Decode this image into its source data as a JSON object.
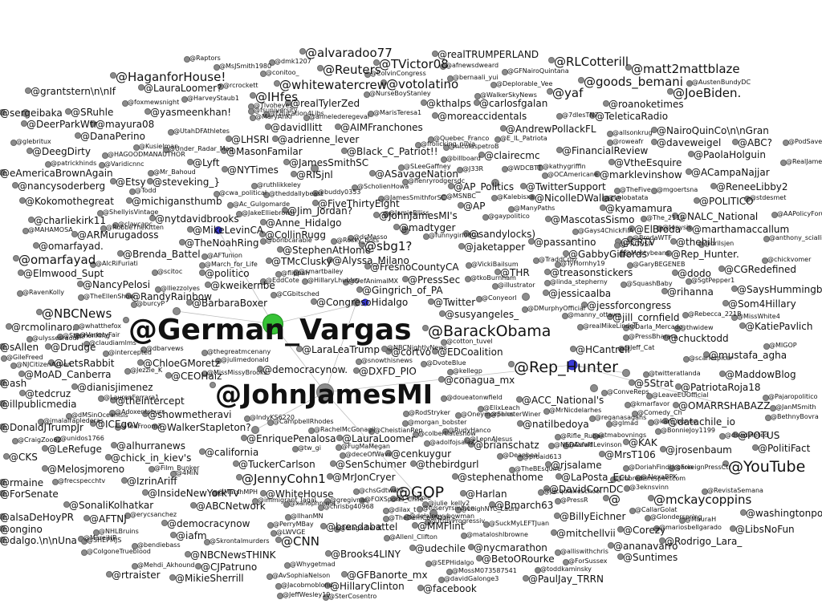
{
  "labels": [
    "@alvaradoo77",
    "@realTRUMPERLAND",
    "@Raptors",
    "@dmk1207",
    "@MsJSmith1980",
    "@TVictor08",
    "@RLCotterill",
    "@Reuters",
    "@matt2mattblaze",
    "@HaganforHouse!",
    "@whitewatercrew",
    "@votolatino",
    "@yaf",
    "@goods_bemani",
    "@grantstern\\n\\nIf",
    "@LauraLoomer?",
    "@IHfes",
    "@JoeBiden.",
    "@sergeibaka",
    "@SRuhle",
    "@yasmeenkhan!",
    "@realTylerZed",
    "@kthalps",
    "@carlosfgalan",
    "@roanoketimes",
    "@DeerParkWtr",
    "@mayura08",
    "@AIMFranchones",
    "@moreaccidentals",
    "@TeleticaRadio",
    "@DanaPerino",
    "@davidllitt",
    "@AndrewPollackFL",
    "@NairoQuinCo\\n\\nGran",
    "@LHSRI",
    "@adrienne_lever",
    "@daveweigel",
    "@ABC?",
    "@DeegDirty",
    "@MasonFamilar",
    "@Black_C_Patriot!!",
    "@clairecmc",
    "@FinancialReview",
    "@PaolaHolguin",
    "@JamesSmithSC",
    "@Lyft",
    "@VtheEsquire",
    "@eAmericaBrownAgain",
    "@NYTimes",
    "@RISjnl",
    "@ASavageNation",
    "@ACampaNajjar",
    "@marklevinshow",
    "@nancysoderberg",
    "@Etsy",
    "@steveking_}",
    "@AP_Politics",
    "@TwitterSupport",
    "@ReneeLibby2",
    "@FiveThirtyEight",
    "@NicolleDWallace",
    "@Kokomothegreat",
    "@michigansthumb",
    "@AP",
    "@POLITICO",
    "@Jim_Jordan?",
    "@kyamamura",
    "@JohnJamesMI's",
    "@NALC_National",
    "@charliekirk11",
    "@nytdavidbrooks",
    "@MascotasSismo",
    "@marthamaccallum",
    "@Anne_Hidalgo",
    "@ARMurugadoss",
    "@CollinRugg",
    "@madtyger",
    "@ElBroda",
    "@sandylocks)",
    "@TheNoahRing",
    "@MikeLevinCA",
    "@omarfayad.",
    "@CRTV",
    "@thehill",
    "@passantino",
    "@jaketapper",
    "@sbg1?",
    "@Brenda_Battel",
    "@StephenAtHome",
    "@GabbyGiffords",
    "@Rep_Hunter.",
    "@omarfayad",
    "@TMcClusky",
    "@Alyssa_Milano",
    "@CGRedefined",
    "@Elmwood_Supt",
    "@politico",
    "@FresnoCountyCA",
    "@dodo",
    "@THR",
    "@treasonstickers",
    "@NancyPelosi",
    "@kweikernbe",
    "@PressSec",
    "@rihanna",
    "@SaysHummingbir",
    "@RandyRainbow",
    "@jessicaalba",
    "@Gingrich_of_PA",
    "@jessforcongress",
    "@Som4Hillary",
    "@NBCNews",
    "@BarbaraBoxer",
    "@CongresoHidalgo",
    "@Twitter",
    "@susyangeles_",
    "@jill_cornfield",
    "@KatiePavlich",
    "@rcmolinaro.",
    "@German_Vargas",
    "@BarackObama",
    "@chucktodd",
    "@Drudge",
    "@LaraLeaTrump",
    "@cortvo",
    "@EDCoalition",
    "@HCantrell",
    "@mustafa_agha",
    "@sAllen",
    "@LetsRabbit",
    "@ChloeGMoretz",
    "@Rep_Hunter",
    "@MoAD_Canberra",
    "@democracynow.",
    "@DXFD_PIO",
    "@conagua_mx",
    "@5Strat",
    "@MaddowBlog",
    "@ash",
    "@dianisjimenez",
    "@CEOHaiz",
    "@PatriotaRoja18",
    "@tedcruz",
    "@JohnJamesMI",
    "@ACC_National's",
    "@OMARRSHABAZZ",
    "@theintercept",
    "@illpublicmedia",
    "@showmetheravi",
    "@natilbedoya",
    "@datachile_io",
    "@DonaldJTrumpJr",
    "@ICEgov",
    "@WalkerStapleton?",
    "@LeRefuge",
    "@KAK",
    "@POTUS",
    "@PolitiFact",
    "@alhurranews",
    "@brianschatz",
    "@jrosenbaum",
    "@EnriquePenalosa",
    "@LauraLoomer",
    "@CKS",
    "@california",
    "@cenkuygur",
    "@MrsT106",
    "@YouTube",
    "@Melosjmoreno",
    "@chick_in_kiev's",
    "@TuckerCarlson",
    "@SenSchumer",
    "@thebirdgurl",
    "@rjsalame",
    "@JennyCohn1",
    "@MrJonCryer",
    "@stephenathome",
    "@LaPosta_Ecu",
    "@rmaine",
    "@IzrinAriff",
    "@GOP",
    "@Harlan",
    "@DavidCornDC",
    "@ForSenate",
    "@InsideNewYorkTV",
    "@WhiteHouse",
    "@Bmarch63",
    "@mckaycoppins",
    "@SonaliKolhatkar",
    "@ABCNetwork",
    "@washingtonpo",
    "@alsaDeHoyPR",
    "@AFTNJ",
    "@democracynow",
    "@brendabattel",
    "@MMFlint",
    "@BillyEichner",
    "@ongino",
    "@iafm",
    "@CNN",
    "@mitchellvii",
    "@Corezy",
    "@LibsNoFun",
    "@dalgo.\\n\\nUna",
    "@udechile",
    "@nycmarathon",
    "@ananavarro",
    "@Rodrigo_Lara_",
    "@NBCNewsTHINK",
    "@Brooks4LINY",
    "@BetoORourke",
    "@Suntimes",
    "@CJPatruno",
    "@GFBanorte_mx",
    "@rtraister",
    "@MikieSherrill",
    "@HillaryClinton",
    "@PaulJay_TRRN",
    "@facebook",
    "@",
    "@Kusielman",
    "@Under_Radar_Mag",
    "@Tlvoheyes",
    "@fsuniversity",
    "@MaryAnKr",
    "@Education4Libs",
    "@annelederegeval",
    "@MarisTeresa1",
    "@NurseBoyStanley",
    "@bernaali_yui",
    "@GFNairoQuintana",
    "@afnewsdweard",
    "@Deplorable_Vee",
    "@WalkerSkyNews",
    "@HarveyStaub1",
    "@foxmewsnight",
    "@rcrockett",
    "@conitoo_",
    "@ColvinCongress",
    "@AustenBundyDC",
    "@7dlesTN7",
    "@E_IL_Patriota",
    "@Quebec_Franco",
    "@frolicking_ninja",
    "@nicolaspetroB",
    "@UtahDFAthletes",
    "@glebritux",
    "@allsonkrug",
    "@roweafr",
    "@PodSaveAmerica",
    "@patrickhinds",
    "@HAGOODMANAUTHOR",
    "@Varidicnnc",
    "@Mr_Bahoud",
    "@cwa_political",
    "@TheFive",
    "@mgoertsna",
    "@RealJamesWoods",
    "@SLeeGaffney",
    "@billboard",
    "@J33R",
    "@WDCBTT",
    "@kathygriffin",
    "@OCAmericane",
    "@Kalebisxa",
    "@JamesSmithforSC",
    "@ScholienHowa",
    "@henryrodgersdc",
    "@MSNBC",
    "@ruthlikkeley",
    "@Ac_Gulgomarde",
    "@Todd",
    "@theddallybeast",
    "@buddy0353",
    "@JakeElliebrown",
    "@ShellyisVintage",
    "@claycanc",
    "@MAHAMOSA",
    "@Lolobatata",
    "@The_2115",
    "@tonysis",
    "@stdesmet",
    "@JamieBlliss",
    "@gaypolitico",
    "@ManyPaths",
    "@AAPolicyForum",
    "@Gays4ChickFilA",
    "@BrodaWTF",
    "@PRGUSP",
    "@brilsjen",
    "@anthony_sciallia",
    "@bonbcarable",
    "@Rosky_Bots",
    "@scitoc",
    "@VickiBailsum",
    "@funnygirl0801",
    "@dcMasso",
    "@tkoBurnham",
    "@TraddCruz",
    "@TyHornhy19",
    "@GaryBEGENEB",
    "@Mostybeans",
    "@SgtPepper1",
    "@chickvomer",
    "@AFTunion",
    "@DefAnimalMX",
    "@EddCote",
    "@flippah",
    "@HillaryLhubley",
    "@smartbailey",
    "@March_for_Life",
    "@AlcRiFuriati",
    "@RavenKolly",
    "@TheEllenShow",
    "@lliezzolyes",
    "@Conyeorl",
    "@illustrator",
    "@linda_stepherny",
    "@SquashBaby",
    "@CGbitsched",
    "@DMurphyOfficial",
    "@manny_ottawa",
    "@Rebecca_221B",
    "@MissWhite4",
    "@burcyP",
    "@whatthefox",
    "@VarietyFair",
    "@claudiamlms",
    "@dbarvews",
    "@thegreatmcenany",
    "@ulyssesraoul",
    "@intercepted",
    "@julimedonald",
    "@NBCNightlyNews",
    "@cotton_tuvel",
    "@realMikeLindell",
    "@thwidew",
    "@Darla_Mercado",
    "@PressBharara",
    "@scarletpicar",
    "@Jeff_Cat",
    "@DvoteBlue",
    "@MIGOP",
    "@NJCitizenAction",
    "@Jezzie_K",
    "@MissMissyBrooks",
    "@snowthisnews",
    "@kellegp",
    "@twitteratlanda",
    "@LeaveEUOfficial",
    "@Pajaropolitico",
    "@BethnyBovra",
    "@JanMSmith",
    "@dMSinOceanisis",
    "@IndyKS6220",
    "@CampbellRhodes",
    "@RachelMcGonagil",
    "@CheistianRep",
    "@RodStryker",
    "@morgan_bobster",
    "@doueatonwfield",
    "@Oneymorphics",
    "@RudyHanco",
    "@ElixLeach",
    "@MrNicdelarhes",
    "@SeneterWiner",
    "@ConveReps",
    "@kmarfavor",
    "@Comedy_Ch",
    "@BonnieJoy1199",
    "@karli_bonne",
    "@dswdeleted",
    "@reganasagans",
    "@glmad",
    "@tw_gi",
    "@deceOfWavs",
    "@FugMaMegan",
    "@colbertlateshow",
    "@adolfojsalaZ",
    "@LeonAJesus",
    "@tmabovnings",
    "@NEDAsfaff",
    "@Rifle_Ruban",
    "@DavidLevinson",
    "@DoriahFindUrgaria",
    "@ForeignPressCtr",
    "@moredisrespectcom",
    "@RevistaSemana",
    "@AlexaBPK",
    "@3eknsvinn",
    "@TheBEsquire",
    "@Deanbeal",
    "@proaid613",
    "@jacquianeschool",
    "@PressR",
    "@CallarGolat",
    "@Glonderspring",
    "@MauraH",
    "@MareiHR",
    "@mariosbellgarado",
    "@SuckMyLEFTJuan",
    "@julie_kelly2",
    "@delaineyybowman",
    "@ClintCole",
    "@bendiebass",
    "@immigrant_lagal",
    "@Skrontalmurders",
    "@ColgoneTrueblood",
    "@Mehdi_Akhound",
    "@JeffWesley19",
    "@SterCosentro",
    "@Jacobmoblond",
    "@AvSophiaNelson",
    "@Whygetmad",
    "@davidGalonge3",
    "@MossM073587541",
    "@SEPHidalgo",
    "@ForSussex",
    "@toddkaminsky",
    "@alliswithchris",
    "@LeighNYC_Laura",
    "@TrulyProgressiv",
    "@mataloshlbrowne",
    "@Allenl_Clifton",
    "@MagnifieriK",
    "@LWVGE",
    "@PerryMBay",
    "@IlhanMN",
    "@xanophrenia",
    "@chrisbg40968",
    "@gregivnas",
    "@dilax_t",
    "@chsGdtwaht",
    "@FOXSports_Chile",
    "@TheDemCoalition",
    "@fuseryrsmlnon",
    "@erycsanchez",
    "@4MiN",
    "@frecspecchtv",
    "@RubbeTheKitten",
    "@SHEPMJS",
    "@NHLBruins",
    "@Film_Bunker",
    "@MarshMPH",
    "@unidos1766",
    "@TodFroom3",
    "@CraigZoo62",
    "@jmalalraplederas",
    "@Adoxentsburr",
    "@StephenKing",
    "@LaurenFerrara1",
    "@GileFreed",
    "@LoriNY",
    "@AdamNewRep",
    "@TMZ",
    "@kuba_NoTricksGuy",
    "@Hoy_it",
    "@CBSNews",
    "@FactsMatterToMe",
    "@Rob",
    "@BillyHockenstein",
    "@HAMILL"
  ]
}
